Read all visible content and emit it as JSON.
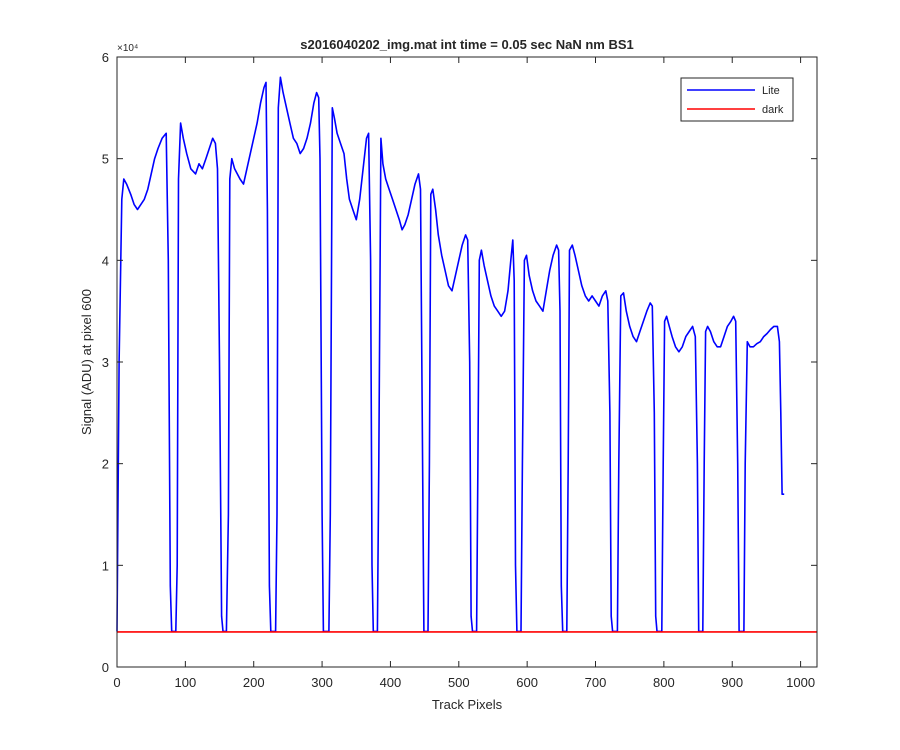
{
  "chart_data": {
    "type": "line",
    "title": "s2016040202_img.mat int time = 0.05 sec  NaN nm BS1",
    "xlabel": "Track Pixels",
    "ylabel": "Signal (ADU) at pixel 600",
    "xlim": [
      0,
      1024
    ],
    "ylim": [
      0,
      60000
    ],
    "x_ticks": [
      0,
      100,
      200,
      300,
      400,
      500,
      600,
      700,
      800,
      900,
      1000
    ],
    "y_ticks": [
      0,
      10000,
      20000,
      30000,
      40000,
      50000,
      60000
    ],
    "y_tick_labels": [
      "0",
      "1",
      "2",
      "3",
      "4",
      "5",
      "6"
    ],
    "y_exponent_label": "×10⁴",
    "grid": false,
    "legend_position": "top-right",
    "series": [
      {
        "name": "Lite",
        "color": "#0000ff",
        "points": [
          [
            0,
            3500
          ],
          [
            3,
            30000
          ],
          [
            7,
            46000
          ],
          [
            10,
            48000
          ],
          [
            14,
            47500
          ],
          [
            20,
            46500
          ],
          [
            25,
            45500
          ],
          [
            30,
            45000
          ],
          [
            35,
            45500
          ],
          [
            40,
            46000
          ],
          [
            45,
            47000
          ],
          [
            50,
            48500
          ],
          [
            55,
            50000
          ],
          [
            60,
            51000
          ],
          [
            66,
            52000
          ],
          [
            72,
            52500
          ],
          [
            75,
            40000
          ],
          [
            78,
            8000
          ],
          [
            80,
            3500
          ],
          [
            86,
            3500
          ],
          [
            88,
            10000
          ],
          [
            90,
            48000
          ],
          [
            93,
            53500
          ],
          [
            97,
            52000
          ],
          [
            102,
            50500
          ],
          [
            108,
            49000
          ],
          [
            115,
            48500
          ],
          [
            120,
            49500
          ],
          [
            125,
            49000
          ],
          [
            130,
            50000
          ],
          [
            135,
            51000
          ],
          [
            140,
            52000
          ],
          [
            144,
            51500
          ],
          [
            147,
            49000
          ],
          [
            150,
            30000
          ],
          [
            153,
            5000
          ],
          [
            155,
            3500
          ],
          [
            160,
            3500
          ],
          [
            163,
            15000
          ],
          [
            165,
            48000
          ],
          [
            168,
            50000
          ],
          [
            172,
            49000
          ],
          [
            176,
            48500
          ],
          [
            180,
            48000
          ],
          [
            185,
            47500
          ],
          [
            190,
            49000
          ],
          [
            195,
            50500
          ],
          [
            200,
            52000
          ],
          [
            205,
            53500
          ],
          [
            210,
            55500
          ],
          [
            215,
            57000
          ],
          [
            218,
            57500
          ],
          [
            220,
            45000
          ],
          [
            223,
            8000
          ],
          [
            225,
            3500
          ],
          [
            232,
            3500
          ],
          [
            234,
            15000
          ],
          [
            236,
            55000
          ],
          [
            239,
            58000
          ],
          [
            243,
            56500
          ],
          [
            248,
            55000
          ],
          [
            253,
            53500
          ],
          [
            258,
            52000
          ],
          [
            263,
            51500
          ],
          [
            268,
            50500
          ],
          [
            273,
            51000
          ],
          [
            278,
            52000
          ],
          [
            283,
            53500
          ],
          [
            288,
            55500
          ],
          [
            292,
            56500
          ],
          [
            295,
            56000
          ],
          [
            297,
            50000
          ],
          [
            300,
            15000
          ],
          [
            302,
            3500
          ],
          [
            310,
            3500
          ],
          [
            312,
            15000
          ],
          [
            315,
            55000
          ],
          [
            318,
            54000
          ],
          [
            322,
            52500
          ],
          [
            327,
            51500
          ],
          [
            332,
            50500
          ],
          [
            336,
            48000
          ],
          [
            340,
            46000
          ],
          [
            345,
            45000
          ],
          [
            350,
            44000
          ],
          [
            355,
            46000
          ],
          [
            360,
            49000
          ],
          [
            365,
            52000
          ],
          [
            368,
            52500
          ],
          [
            371,
            40000
          ],
          [
            373,
            10000
          ],
          [
            375,
            3500
          ],
          [
            381,
            3500
          ],
          [
            383,
            20000
          ],
          [
            386,
            52000
          ],
          [
            389,
            49500
          ],
          [
            393,
            48000
          ],
          [
            398,
            47000
          ],
          [
            403,
            46000
          ],
          [
            408,
            45000
          ],
          [
            413,
            44000
          ],
          [
            417,
            43000
          ],
          [
            421,
            43500
          ],
          [
            426,
            44500
          ],
          [
            431,
            46000
          ],
          [
            436,
            47500
          ],
          [
            441,
            48500
          ],
          [
            444,
            47000
          ],
          [
            447,
            20000
          ],
          [
            449,
            3500
          ],
          [
            455,
            3500
          ],
          [
            457,
            20000
          ],
          [
            459,
            46500
          ],
          [
            462,
            47000
          ],
          [
            466,
            45000
          ],
          [
            470,
            42500
          ],
          [
            475,
            40500
          ],
          [
            480,
            39000
          ],
          [
            485,
            37500
          ],
          [
            490,
            37000
          ],
          [
            495,
            38500
          ],
          [
            500,
            40000
          ],
          [
            505,
            41500
          ],
          [
            510,
            42500
          ],
          [
            513,
            42000
          ],
          [
            516,
            30000
          ],
          [
            518,
            5000
          ],
          [
            520,
            3500
          ],
          [
            526,
            3500
          ],
          [
            528,
            20000
          ],
          [
            530,
            40000
          ],
          [
            533,
            41000
          ],
          [
            537,
            39500
          ],
          [
            542,
            38000
          ],
          [
            547,
            36500
          ],
          [
            552,
            35500
          ],
          [
            557,
            35000
          ],
          [
            562,
            34500
          ],
          [
            567,
            35000
          ],
          [
            572,
            37000
          ],
          [
            576,
            40000
          ],
          [
            579,
            42000
          ],
          [
            581,
            38000
          ],
          [
            583,
            10000
          ],
          [
            585,
            3500
          ],
          [
            591,
            3500
          ],
          [
            593,
            20000
          ],
          [
            596,
            40000
          ],
          [
            599,
            40500
          ],
          [
            603,
            38500
          ],
          [
            608,
            37000
          ],
          [
            613,
            36000
          ],
          [
            618,
            35500
          ],
          [
            623,
            35000
          ],
          [
            628,
            37000
          ],
          [
            633,
            39000
          ],
          [
            638,
            40500
          ],
          [
            643,
            41500
          ],
          [
            646,
            41000
          ],
          [
            648,
            35000
          ],
          [
            650,
            8000
          ],
          [
            652,
            3500
          ],
          [
            658,
            3500
          ],
          [
            660,
            20000
          ],
          [
            662,
            41000
          ],
          [
            666,
            41500
          ],
          [
            670,
            40500
          ],
          [
            675,
            39000
          ],
          [
            680,
            37500
          ],
          [
            685,
            36500
          ],
          [
            690,
            36000
          ],
          [
            695,
            36500
          ],
          [
            700,
            36000
          ],
          [
            705,
            35500
          ],
          [
            710,
            36500
          ],
          [
            715,
            37000
          ],
          [
            718,
            36000
          ],
          [
            721,
            25000
          ],
          [
            723,
            5000
          ],
          [
            725,
            3500
          ],
          [
            732,
            3500
          ],
          [
            734,
            20000
          ],
          [
            737,
            36500
          ],
          [
            741,
            36800
          ],
          [
            745,
            35000
          ],
          [
            750,
            33500
          ],
          [
            755,
            32500
          ],
          [
            760,
            32000
          ],
          [
            765,
            33000
          ],
          [
            770,
            34000
          ],
          [
            775,
            35000
          ],
          [
            780,
            35800
          ],
          [
            783,
            35500
          ],
          [
            786,
            25000
          ],
          [
            788,
            5000
          ],
          [
            790,
            3500
          ],
          [
            797,
            3500
          ],
          [
            799,
            20000
          ],
          [
            801,
            34000
          ],
          [
            804,
            34500
          ],
          [
            808,
            33500
          ],
          [
            812,
            32500
          ],
          [
            817,
            31500
          ],
          [
            822,
            31000
          ],
          [
            827,
            31500
          ],
          [
            832,
            32500
          ],
          [
            837,
            33000
          ],
          [
            842,
            33500
          ],
          [
            846,
            32500
          ],
          [
            849,
            20000
          ],
          [
            851,
            3500
          ],
          [
            857,
            3500
          ],
          [
            859,
            20000
          ],
          [
            861,
            33000
          ],
          [
            864,
            33500
          ],
          [
            868,
            33000
          ],
          [
            873,
            32000
          ],
          [
            878,
            31500
          ],
          [
            883,
            31500
          ],
          [
            888,
            32500
          ],
          [
            893,
            33500
          ],
          [
            898,
            34000
          ],
          [
            902,
            34500
          ],
          [
            905,
            34000
          ],
          [
            908,
            20000
          ],
          [
            910,
            3500
          ],
          [
            917,
            3500
          ],
          [
            919,
            20000
          ],
          [
            922,
            32000
          ],
          [
            926,
            31500
          ],
          [
            931,
            31500
          ],
          [
            936,
            31800
          ],
          [
            941,
            32000
          ],
          [
            946,
            32500
          ],
          [
            951,
            32800
          ],
          [
            956,
            33200
          ],
          [
            961,
            33500
          ],
          [
            966,
            33500
          ],
          [
            969,
            32000
          ],
          [
            971,
            25000
          ],
          [
            973,
            17000
          ],
          [
            976,
            17000
          ]
        ]
      },
      {
        "name": "dark",
        "color": "#ff0000",
        "points": [
          [
            0,
            3450
          ],
          [
            1024,
            3450
          ]
        ]
      }
    ]
  }
}
